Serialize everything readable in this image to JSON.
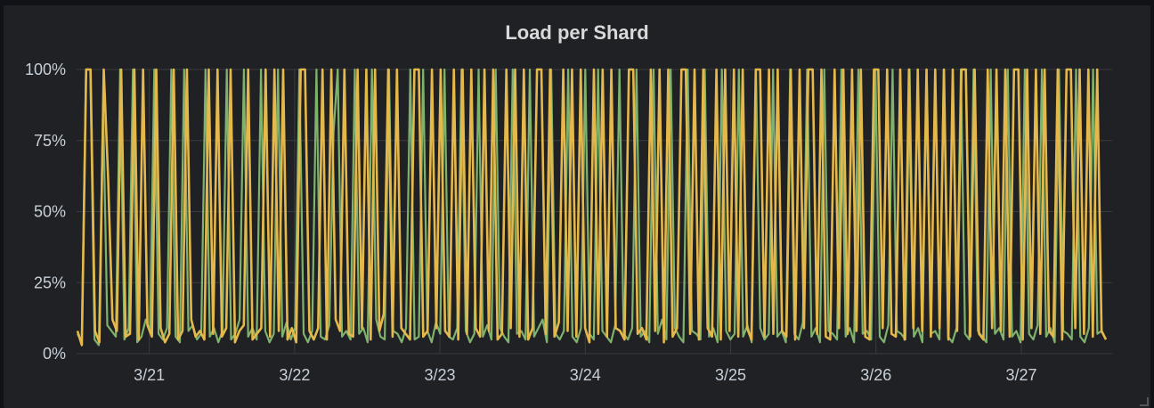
{
  "panel": {
    "title": "Load per Shard"
  },
  "chart_data": {
    "type": "line",
    "title": "Load per Shard",
    "xlabel": "",
    "ylabel": "",
    "x_range": [
      "3/20 12:00",
      "3/27 15:00"
    ],
    "ylim": [
      0,
      100
    ],
    "y_ticks": [
      {
        "value": 0,
        "label": "0%"
      },
      {
        "value": 25,
        "label": "25%"
      },
      {
        "value": 50,
        "label": "50%"
      },
      {
        "value": 75,
        "label": "75%"
      },
      {
        "value": 100,
        "label": "100%"
      }
    ],
    "x_ticks": [
      {
        "value": "3/21",
        "label": "3/21"
      },
      {
        "value": "3/22",
        "label": "3/22"
      },
      {
        "value": "3/23",
        "label": "3/23"
      },
      {
        "value": "3/24",
        "label": "3/24"
      },
      {
        "value": "3/25",
        "label": "3/25"
      },
      {
        "value": "3/26",
        "label": "3/26"
      },
      {
        "value": "3/27",
        "label": "3/27"
      }
    ],
    "grid": true,
    "legend": "none",
    "colors": {
      "series_a": "#e5b84b",
      "series_b": "#7eb26d",
      "grid": "#3a3b40"
    },
    "series": [
      {
        "color": "#7eb26d",
        "values": [
          7,
          4,
          100,
          100,
          5,
          3,
          88,
          10,
          8,
          6,
          100,
          5,
          9,
          100,
          4,
          6,
          12,
          8,
          100,
          7,
          5,
          9,
          100,
          6,
          4,
          100,
          8,
          10,
          5,
          7,
          100,
          6,
          9,
          4,
          8,
          100,
          5,
          7,
          12,
          100,
          6,
          9,
          5,
          100,
          8,
          4,
          7,
          100,
          6,
          11,
          5,
          9,
          100,
          7,
          4,
          8,
          100,
          6,
          5,
          10,
          78,
          100,
          6,
          8,
          5,
          100,
          7,
          9,
          4,
          100,
          12,
          6,
          5,
          100,
          8,
          7,
          4,
          9,
          100,
          5,
          6,
          100,
          8,
          4,
          11,
          7,
          100,
          6,
          5,
          9,
          100,
          8,
          4,
          7,
          100,
          6,
          10,
          5,
          100,
          9,
          6,
          4,
          100,
          7,
          8,
          5,
          100,
          6,
          9,
          12,
          4,
          100,
          7,
          5,
          8,
          100,
          6,
          4,
          9,
          100,
          7,
          5,
          100,
          8,
          6,
          4,
          10,
          100,
          7,
          5,
          9,
          100,
          6,
          8,
          4,
          100,
          7,
          12,
          5,
          100,
          9,
          6,
          4,
          100,
          8,
          7,
          5,
          100,
          6,
          9,
          4,
          100,
          8,
          5,
          7,
          100,
          6,
          10,
          4,
          100,
          9,
          5,
          7,
          100,
          6,
          8,
          4,
          100,
          7,
          5,
          11,
          100,
          6,
          9,
          4,
          100,
          8,
          7,
          5,
          100,
          6,
          9,
          4,
          100,
          7,
          8,
          5,
          100,
          6,
          4,
          10,
          100,
          8,
          7,
          5,
          100,
          6,
          9,
          4,
          100,
          7,
          8,
          5,
          100,
          6,
          4,
          9,
          100,
          7,
          5,
          100,
          8,
          6,
          4,
          100,
          7,
          9,
          5,
          100,
          6,
          8,
          4,
          100,
          7,
          5,
          10,
          100,
          6,
          9,
          4,
          100,
          8,
          7,
          5,
          100,
          6,
          4,
          9,
          100,
          7,
          8,
          5
        ]
      },
      {
        "color": "#e5b84b",
        "values": [
          8,
          3,
          100,
          100,
          8,
          4,
          100,
          62,
          12,
          8,
          100,
          6,
          7,
          100,
          5,
          100,
          10,
          6,
          100,
          9,
          4,
          7,
          100,
          5,
          8,
          100,
          12,
          6,
          8,
          5,
          100,
          7,
          100,
          6,
          9,
          100,
          4,
          8,
          10,
          100,
          5,
          7,
          9,
          100,
          6,
          100,
          8,
          100,
          5,
          9,
          4,
          100,
          100,
          8,
          5,
          9,
          100,
          5,
          100,
          12,
          8,
          100,
          7,
          6,
          100,
          9,
          100,
          5,
          100,
          8,
          14,
          100,
          6,
          100,
          9,
          7,
          5,
          100,
          100,
          6,
          8,
          100,
          9,
          100,
          8,
          6,
          100,
          5,
          100,
          7,
          100,
          9,
          6,
          100,
          8,
          100,
          5,
          7,
          100,
          9,
          100,
          6,
          100,
          5,
          9,
          100,
          100,
          7,
          100,
          6,
          11,
          100,
          8,
          100,
          6,
          100,
          9,
          4,
          100,
          7,
          100,
          6,
          100,
          9,
          8,
          5,
          100,
          100,
          7,
          9,
          5,
          100,
          8,
          100,
          4,
          100,
          6,
          9,
          100,
          100,
          7,
          100,
          5,
          100,
          9,
          6,
          100,
          5,
          100,
          8,
          100,
          6,
          100,
          9,
          5,
          100,
          100,
          6,
          100,
          7,
          100,
          8,
          6,
          100,
          5,
          100,
          9,
          100,
          100,
          7,
          100,
          6,
          5,
          100,
          9,
          100,
          7,
          100,
          8,
          100,
          6,
          5,
          100,
          100,
          9,
          100,
          7,
          6,
          100,
          5,
          100,
          9,
          100,
          8,
          100,
          6,
          100,
          9,
          100,
          5,
          100,
          8,
          100,
          100,
          6,
          100,
          7,
          5,
          100,
          9,
          100,
          8,
          100,
          6,
          100,
          100,
          5,
          100,
          9,
          100,
          7,
          100,
          8,
          6,
          100,
          5,
          100,
          100,
          9,
          100,
          7,
          100,
          6,
          100,
          8,
          5
        ]
      }
    ]
  }
}
